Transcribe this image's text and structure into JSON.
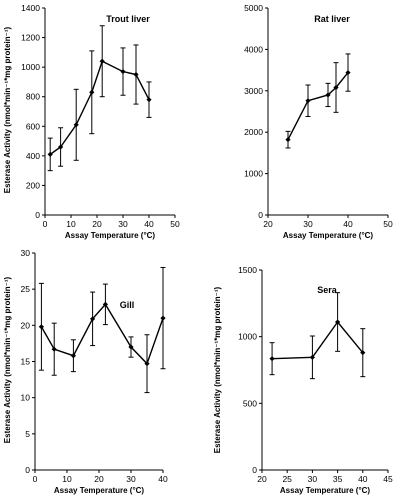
{
  "chart_data": [
    {
      "type": "line",
      "title": "Trout liver",
      "xlabel": "Assay Temperature (°C)",
      "ylabel": "Esterase Activity (nmol*min⁻¹*mg protein⁻¹)",
      "xlim": [
        0,
        50
      ],
      "ylim": [
        0,
        1400
      ],
      "xticks": [
        0,
        10,
        20,
        30,
        40,
        50
      ],
      "yticks": [
        0,
        200,
        400,
        600,
        800,
        1000,
        1200,
        1400
      ],
      "x": [
        2,
        6,
        12,
        18,
        22,
        30,
        35,
        40
      ],
      "y": [
        410,
        460,
        610,
        830,
        1040,
        970,
        950,
        780
      ],
      "err": [
        110,
        130,
        240,
        280,
        240,
        160,
        200,
        120
      ]
    },
    {
      "type": "line",
      "title": "Rat liver",
      "xlabel": "Assay Temperature (°C)",
      "ylabel": "",
      "xlim": [
        20,
        50
      ],
      "ylim": [
        0,
        5000
      ],
      "xticks": [
        20,
        30,
        40,
        50
      ],
      "yticks": [
        0,
        1000,
        2000,
        3000,
        4000,
        5000
      ],
      "x": [
        25,
        30,
        35,
        37,
        40
      ],
      "y": [
        1820,
        2760,
        2900,
        3080,
        3440
      ],
      "err": [
        200,
        380,
        280,
        600,
        450
      ]
    },
    {
      "type": "line",
      "title": "Gill",
      "xlabel": "Assay Temperature (°C)",
      "ylabel": "Esterase Activity (nmol*min⁻¹*mg protein⁻¹)",
      "xlim": [
        0,
        40
      ],
      "ylim": [
        0,
        30
      ],
      "xticks": [
        0,
        10,
        20,
        30,
        40
      ],
      "yticks": [
        0,
        5,
        10,
        15,
        20,
        25,
        30
      ],
      "x": [
        2,
        6,
        12,
        18,
        22,
        30,
        35,
        40
      ],
      "y": [
        19.8,
        16.7,
        15.8,
        20.9,
        22.9,
        17.0,
        14.7,
        21.0
      ],
      "err": [
        6.0,
        3.6,
        2.2,
        3.7,
        2.8,
        1.4,
        4.0,
        7.0
      ]
    },
    {
      "type": "line",
      "title": "Sera",
      "xlabel": "Assay Temperature (°C)",
      "ylabel": "Esterase Activity (nmol*min⁻¹*mg protein⁻¹)",
      "xlim": [
        20,
        45
      ],
      "ylim": [
        0,
        1500
      ],
      "xticks": [
        20,
        25,
        30,
        35,
        40,
        45
      ],
      "yticks": [
        0,
        500,
        1000,
        1500
      ],
      "x": [
        22,
        30,
        35,
        40
      ],
      "y": [
        835,
        845,
        1110,
        880
      ],
      "err": [
        120,
        160,
        220,
        180
      ]
    }
  ]
}
